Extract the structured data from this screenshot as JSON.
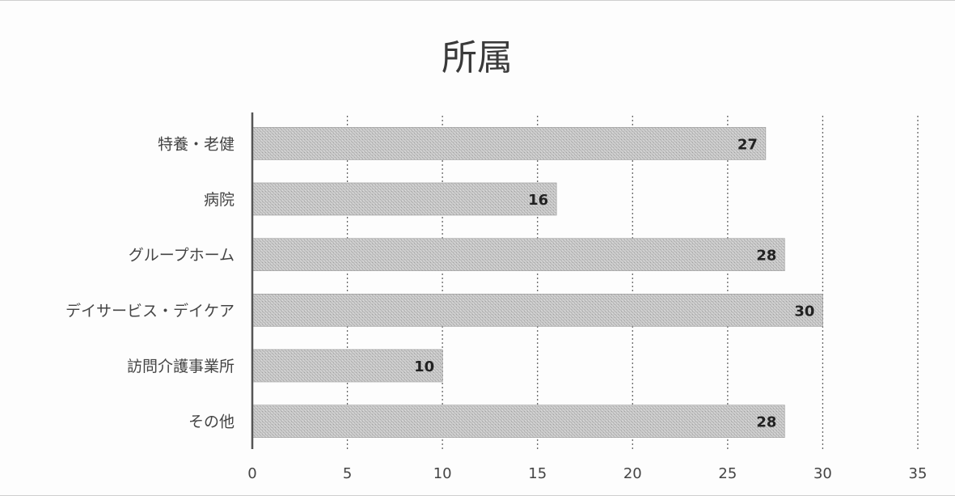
{
  "chart_data": {
    "type": "bar",
    "orientation": "horizontal",
    "title": "所属",
    "xlabel": "",
    "ylabel": "",
    "categories": [
      "特養・老健",
      "病院",
      "グループホーム",
      "デイサービス・デイケア",
      "訪問介護事業所",
      "その他"
    ],
    "values": [
      27,
      16,
      28,
      30,
      10,
      28
    ],
    "xlim": [
      0,
      35
    ],
    "xticks": [
      0,
      5,
      10,
      15,
      20,
      25,
      30,
      35
    ],
    "grid": "vertical-dashed",
    "legend": "none",
    "data_labels": true,
    "colors": {
      "bar_fill": "#c4c4c4",
      "bar_stroke": "#9a9a9a",
      "axis": "#555555",
      "grid": "#666666",
      "text": "#444444",
      "label_text": "#222222",
      "title_text": "#3a3a3a"
    }
  }
}
